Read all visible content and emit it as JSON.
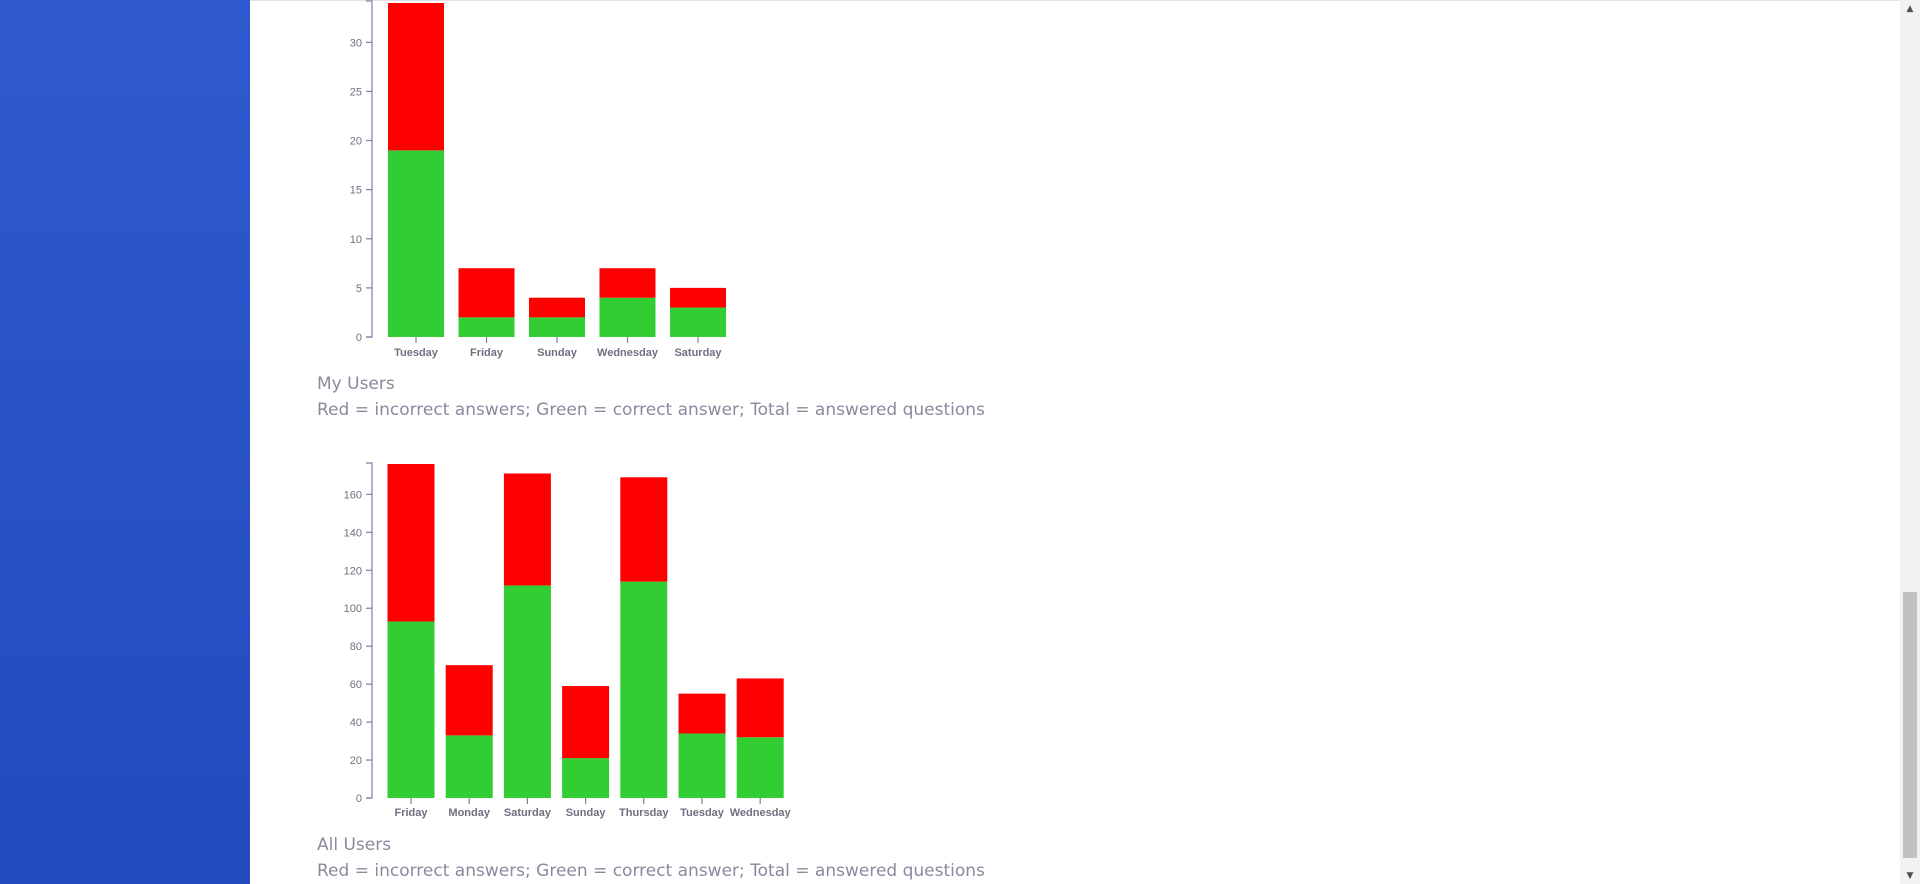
{
  "colors": {
    "correct": "#32cd32",
    "incorrect": "#ff0000",
    "axis": "#7d7fa6",
    "caption": "#8a8a9e"
  },
  "captions": {
    "chart1_title": "My Users",
    "chart1_note": "Red = incorrect answers; Green = correct answer; Total = answered questions",
    "chart2_title": "All Users",
    "chart2_note": "Red = incorrect answers; Green = correct answer; Total = answered questions"
  },
  "chart_data": [
    {
      "type": "bar",
      "stacked": true,
      "categories": [
        "Tuesday",
        "Friday",
        "Sunday",
        "Wednesday",
        "Saturday"
      ],
      "series": [
        {
          "color": "#32cd32",
          "values": [
            19,
            2,
            2,
            4,
            3
          ]
        },
        {
          "color": "#ff0000",
          "values": [
            15,
            5,
            2,
            3,
            2
          ]
        }
      ],
      "yticks": [
        0,
        5,
        10,
        15,
        20,
        25,
        30
      ],
      "ylim": [
        0,
        34
      ],
      "grid": false,
      "legend": "none"
    },
    {
      "type": "bar",
      "stacked": true,
      "categories": [
        "Friday",
        "Monday",
        "Saturday",
        "Sunday",
        "Thursday",
        "Tuesday",
        "Wednesday"
      ],
      "series": [
        {
          "color": "#32cd32",
          "values": [
            93,
            33,
            112,
            21,
            114,
            34,
            32
          ]
        },
        {
          "color": "#ff0000",
          "values": [
            83,
            37,
            59,
            38,
            55,
            21,
            31
          ]
        }
      ],
      "yticks": [
        0,
        20,
        40,
        60,
        80,
        100,
        120,
        140,
        160
      ],
      "ylim": [
        0,
        176
      ],
      "grid": false,
      "legend": "none"
    }
  ]
}
